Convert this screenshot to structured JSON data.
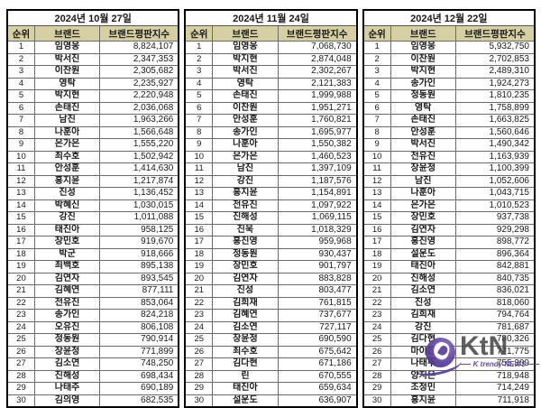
{
  "colors": {
    "header_bg": "#d6cfa2",
    "table_border": "#000000",
    "grid_line": "#6b6b6b",
    "watermark_purple": "#5a3d9e",
    "watermark_text": "#48484a"
  },
  "columns": {
    "rank": "순위",
    "brand": "브랜드",
    "index": "브랜드평판지수"
  },
  "watermark": {
    "logo_text": "KtN",
    "tagline": "K trendy NEWS"
  },
  "tables": [
    {
      "date": "2024년 10월 27일",
      "rows": [
        [
          1,
          "임영웅",
          "8,824,107"
        ],
        [
          2,
          "박서진",
          "2,347,353"
        ],
        [
          3,
          "이찬원",
          "2,305,682"
        ],
        [
          4,
          "영탁",
          "2,235,927"
        ],
        [
          5,
          "박지현",
          "2,220,948"
        ],
        [
          6,
          "손태진",
          "2,036,068"
        ],
        [
          7,
          "남진",
          "1,963,266"
        ],
        [
          8,
          "나훈아",
          "1,566,648"
        ],
        [
          9,
          "은가은",
          "1,555,220"
        ],
        [
          10,
          "최수호",
          "1,502,942"
        ],
        [
          11,
          "안성훈",
          "1,414,630"
        ],
        [
          12,
          "홍지윤",
          "1,217,874"
        ],
        [
          13,
          "진성",
          "1,136,452"
        ],
        [
          14,
          "박혜신",
          "1,030,015"
        ],
        [
          15,
          "강진",
          "1,011,088"
        ],
        [
          16,
          "태진아",
          "958,125"
        ],
        [
          17,
          "장민호",
          "919,670"
        ],
        [
          18,
          "박군",
          "918,666"
        ],
        [
          19,
          "최백호",
          "895,138"
        ],
        [
          20,
          "김연자",
          "893,545"
        ],
        [
          21,
          "김혜연",
          "877,111"
        ],
        [
          22,
          "전유진",
          "853,064"
        ],
        [
          23,
          "송가인",
          "824,218"
        ],
        [
          24,
          "오유진",
          "806,108"
        ],
        [
          25,
          "정동원",
          "790,914"
        ],
        [
          26,
          "장윤정",
          "771,899"
        ],
        [
          27,
          "김소연",
          "748,250"
        ],
        [
          28,
          "진해성",
          "698,434"
        ],
        [
          29,
          "나태주",
          "690,189"
        ],
        [
          30,
          "김의영",
          "682,535"
        ]
      ]
    },
    {
      "date": "2024년 11월 24일",
      "rows": [
        [
          1,
          "임영웅",
          "7,068,730"
        ],
        [
          2,
          "박지현",
          "2,874,048"
        ],
        [
          3,
          "박서진",
          "2,302,267"
        ],
        [
          4,
          "영탁",
          "2,121,383"
        ],
        [
          5,
          "손태진",
          "1,999,988"
        ],
        [
          6,
          "이찬원",
          "1,951,271"
        ],
        [
          7,
          "안성훈",
          "1,760,821"
        ],
        [
          8,
          "송가인",
          "1,695,977"
        ],
        [
          9,
          "나훈아",
          "1,550,382"
        ],
        [
          10,
          "은가은",
          "1,460,523"
        ],
        [
          11,
          "남진",
          "1,397,109"
        ],
        [
          12,
          "강진",
          "1,187,576"
        ],
        [
          13,
          "홍지윤",
          "1,154,891"
        ],
        [
          14,
          "전유진",
          "1,097,922"
        ],
        [
          15,
          "진해성",
          "1,069,115"
        ],
        [
          16,
          "진욱",
          "1,018,329"
        ],
        [
          17,
          "홍진영",
          "959,968"
        ],
        [
          18,
          "정동원",
          "930,437"
        ],
        [
          19,
          "장민호",
          "901,797"
        ],
        [
          20,
          "김연자",
          "883,828"
        ],
        [
          21,
          "진성",
          "803,477"
        ],
        [
          22,
          "김희재",
          "761,815"
        ],
        [
          23,
          "김혜연",
          "737,677"
        ],
        [
          24,
          "김소연",
          "727,117"
        ],
        [
          25,
          "장윤정",
          "690,590"
        ],
        [
          26,
          "최수호",
          "675,642"
        ],
        [
          27,
          "김다현",
          "671,186"
        ],
        [
          28,
          "린",
          "670,555"
        ],
        [
          29,
          "태진아",
          "659,634"
        ],
        [
          30,
          "설운도",
          "636,907"
        ]
      ]
    },
    {
      "date": "2024년 12월 22일",
      "rows": [
        [
          1,
          "임영웅",
          "5,932,750"
        ],
        [
          2,
          "이찬원",
          "2,702,853"
        ],
        [
          3,
          "박지현",
          "2,489,310"
        ],
        [
          4,
          "송가인",
          "1,924,273"
        ],
        [
          5,
          "정동원",
          "1,810,235"
        ],
        [
          6,
          "영탁",
          "1,758,899"
        ],
        [
          7,
          "손태진",
          "1,663,825"
        ],
        [
          8,
          "안성훈",
          "1,560,646"
        ],
        [
          9,
          "박서진",
          "1,490,342"
        ],
        [
          10,
          "전유진",
          "1,163,939"
        ],
        [
          11,
          "장윤정",
          "1,100,399"
        ],
        [
          12,
          "남진",
          "1,052,606"
        ],
        [
          13,
          "나훈아",
          "1,043,715"
        ],
        [
          14,
          "은가은",
          "1,010,523"
        ],
        [
          15,
          "장민호",
          "937,738"
        ],
        [
          16,
          "김연자",
          "929,298"
        ],
        [
          17,
          "홍진영",
          "898,772"
        ],
        [
          18,
          "설운도",
          "896,364"
        ],
        [
          19,
          "태진아",
          "842,881"
        ],
        [
          20,
          "진해성",
          "840,735"
        ],
        [
          21,
          "김소연",
          "836,021"
        ],
        [
          22,
          "진성",
          "818,060"
        ],
        [
          23,
          "김희재",
          "794,764"
        ],
        [
          24,
          "강진",
          "781,687"
        ],
        [
          25,
          "김다현",
          "780,326"
        ],
        [
          26,
          "마이진",
          "771,775"
        ],
        [
          27,
          "나태주",
          "755,309"
        ],
        [
          28,
          "양지은",
          "718,948"
        ],
        [
          29,
          "조정민",
          "714,249"
        ],
        [
          30,
          "홍지윤",
          "711,918"
        ]
      ]
    }
  ]
}
